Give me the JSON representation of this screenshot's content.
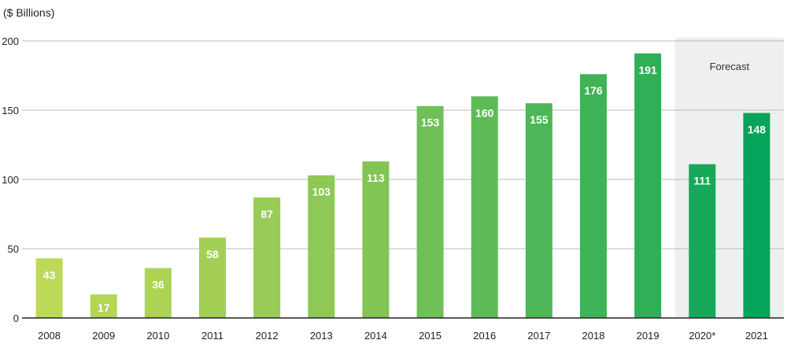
{
  "chart_data": {
    "type": "bar",
    "unit_label": "($ Billions)",
    "categories": [
      "2008",
      "2009",
      "2010",
      "2011",
      "2012",
      "2013",
      "2014",
      "2015",
      "2016",
      "2017",
      "2018",
      "2019",
      "2020*",
      "2021"
    ],
    "values": [
      43,
      17,
      36,
      58,
      87,
      103,
      113,
      153,
      160,
      155,
      176,
      191,
      111,
      148
    ],
    "yticks": [
      0,
      50,
      100,
      150,
      200
    ],
    "ylim": [
      0,
      200
    ],
    "grid": true,
    "forecast": {
      "label": "Forecast",
      "categories": [
        "2020*",
        "2021"
      ],
      "shade_color": "#eef0ef"
    },
    "bar_colors": [
      "#bcd958",
      "#b4d656",
      "#acd354",
      "#a3cf55",
      "#99cc56",
      "#8ec855",
      "#82c456",
      "#6fc057",
      "#5dbb57",
      "#4db757",
      "#3fb357",
      "#31af57",
      "#16a95a",
      "#05a45a"
    ],
    "grid_color": "#bbbbbb",
    "axis_color": "#222222"
  }
}
